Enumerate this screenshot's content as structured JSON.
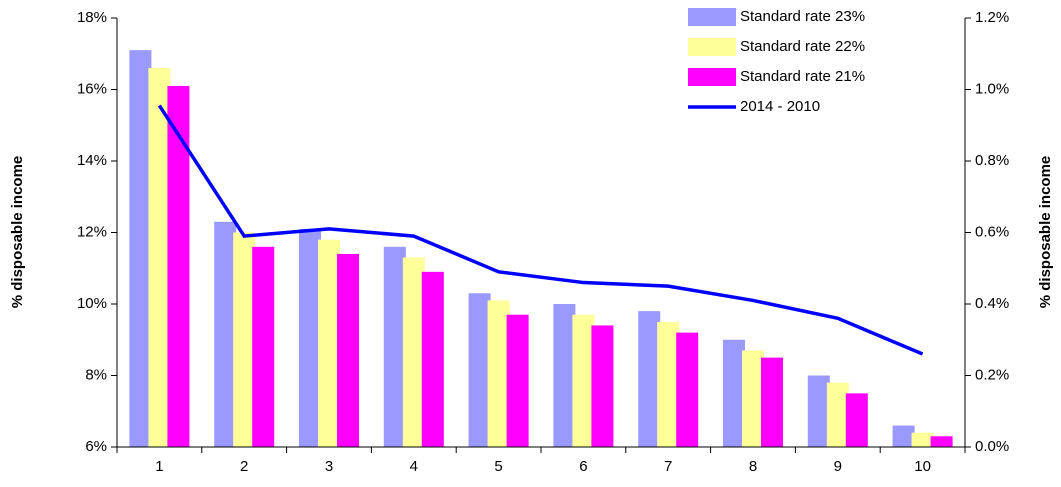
{
  "chart_data": {
    "type": "bar_line",
    "y_label": "% disposable income",
    "y2_label": "% disposable income",
    "categories": [
      "1",
      "2",
      "3",
      "4",
      "5",
      "6",
      "7",
      "8",
      "9",
      "10"
    ],
    "series": [
      {
        "name": "Standard rate 23%",
        "color": "#9999ff",
        "type": "bar",
        "values": [
          17.1,
          12.3,
          12.1,
          11.6,
          10.3,
          10.0,
          9.8,
          9.0,
          8.0,
          6.6
        ]
      },
      {
        "name": "Standard rate 22%",
        "color": "#ffff99",
        "type": "bar",
        "values": [
          16.6,
          12.0,
          11.8,
          11.3,
          10.1,
          9.7,
          9.5,
          8.7,
          7.8,
          6.4
        ]
      },
      {
        "name": "Standard rate 21%",
        "color": "#ff00ff",
        "type": "bar",
        "values": [
          16.1,
          11.6,
          11.4,
          10.9,
          9.7,
          9.4,
          9.2,
          8.5,
          7.5,
          6.3
        ]
      },
      {
        "name": "2014 - 2010",
        "color": "#0000ff",
        "type": "line",
        "axis": "y2",
        "values": [
          0.955,
          0.59,
          0.61,
          0.59,
          0.49,
          0.46,
          0.45,
          0.41,
          0.36,
          0.26
        ]
      }
    ],
    "ylim": [
      6,
      18
    ],
    "yticks": [
      {
        "value": 6,
        "label": "6%"
      },
      {
        "value": 8,
        "label": "8%"
      },
      {
        "value": 10,
        "label": "10%"
      },
      {
        "value": 12,
        "label": "12%"
      },
      {
        "value": 14,
        "label": "14%"
      },
      {
        "value": 16,
        "label": "16%"
      },
      {
        "value": 18,
        "label": "18%"
      }
    ],
    "y2lim": [
      0,
      1.2
    ],
    "y2ticks": [
      {
        "value": 0,
        "label": "0.0%"
      },
      {
        "value": 0.2,
        "label": "0.2%"
      },
      {
        "value": 0.4,
        "label": "0.4%"
      },
      {
        "value": 0.6,
        "label": "0.6%"
      },
      {
        "value": 0.8,
        "label": "0.8%"
      },
      {
        "value": 1.0,
        "label": "1.0%"
      },
      {
        "value": 1.2,
        "label": "1.2%"
      }
    ],
    "legend": "top-right"
  }
}
